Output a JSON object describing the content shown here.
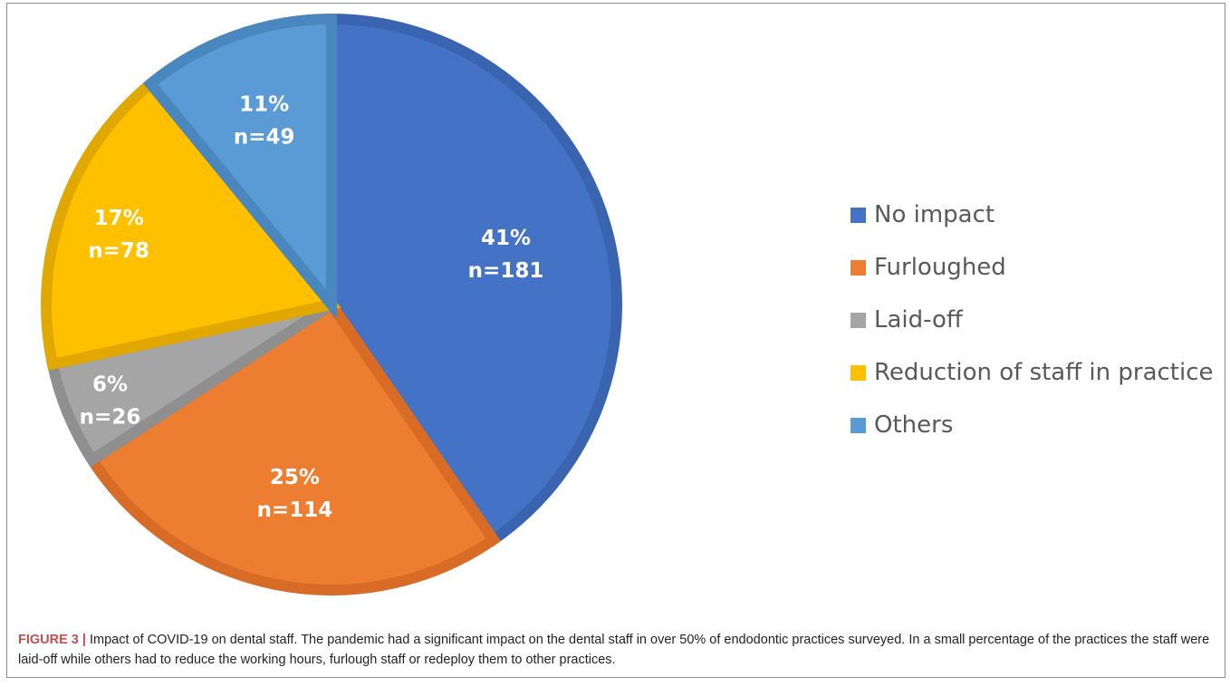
{
  "chart_data": {
    "type": "pie",
    "title": "",
    "slices": [
      {
        "label": "No impact",
        "value": 181,
        "percent_label": "41%",
        "count_label": "n=181",
        "color": "#4472C4",
        "border": "#3A64B0"
      },
      {
        "label": "Furloughed",
        "value": 114,
        "percent_label": "25%",
        "count_label": "n=114",
        "color": "#ED7D31",
        "border": "#D86C26"
      },
      {
        "label": "Laid-off",
        "value": 26,
        "percent_label": "6%",
        "count_label": "n=26",
        "color": "#A5A5A5",
        "border": "#8F8F8F"
      },
      {
        "label": "Reduction of staff in practice",
        "value": 78,
        "percent_label": "17%",
        "count_label": "n=78",
        "color": "#FFC000",
        "border": "#E0A800"
      },
      {
        "label": "Others",
        "value": 49,
        "percent_label": "11%",
        "count_label": "n=49",
        "color": "#5B9BD5",
        "border": "#4A87BE"
      }
    ],
    "legend_position": "right"
  },
  "caption": {
    "label": "FIGURE 3 |",
    "text": " Impact of COVID-19 on dental staff. The pandemic had a significant impact on the dental staff in over 50% of endodontic practices surveyed. In a small percentage of the practices the staff were laid-off while others had to reduce the working hours, furlough staff or redeploy them to other practices."
  }
}
